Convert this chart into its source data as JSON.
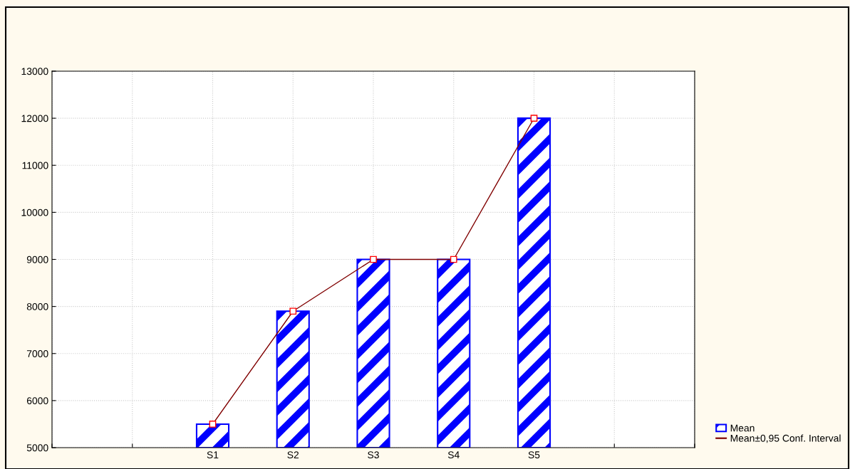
{
  "chart_data": {
    "type": "bar",
    "categories": [
      null,
      null,
      "S1",
      "S2",
      "S3",
      "S4",
      "S5",
      null,
      null
    ],
    "series": [
      {
        "name": "Mean",
        "color": "#0000ff",
        "values": [
          null,
          null,
          5500,
          7900,
          9000,
          9000,
          12000,
          null,
          null
        ]
      },
      {
        "type": "line",
        "color": "#800000",
        "marker": "square",
        "values": [
          null,
          null,
          5500,
          7900,
          9000,
          9000,
          12000,
          null,
          null
        ]
      }
    ],
    "ylim": [
      5000,
      13000
    ],
    "yticks": [
      5000,
      6000,
      7000,
      8000,
      9000,
      10000,
      11000,
      12000,
      13000
    ],
    "grid": true,
    "legend": "bottom right",
    "annotations": [
      "Mean±0,95 Conf. Interval"
    ]
  }
}
